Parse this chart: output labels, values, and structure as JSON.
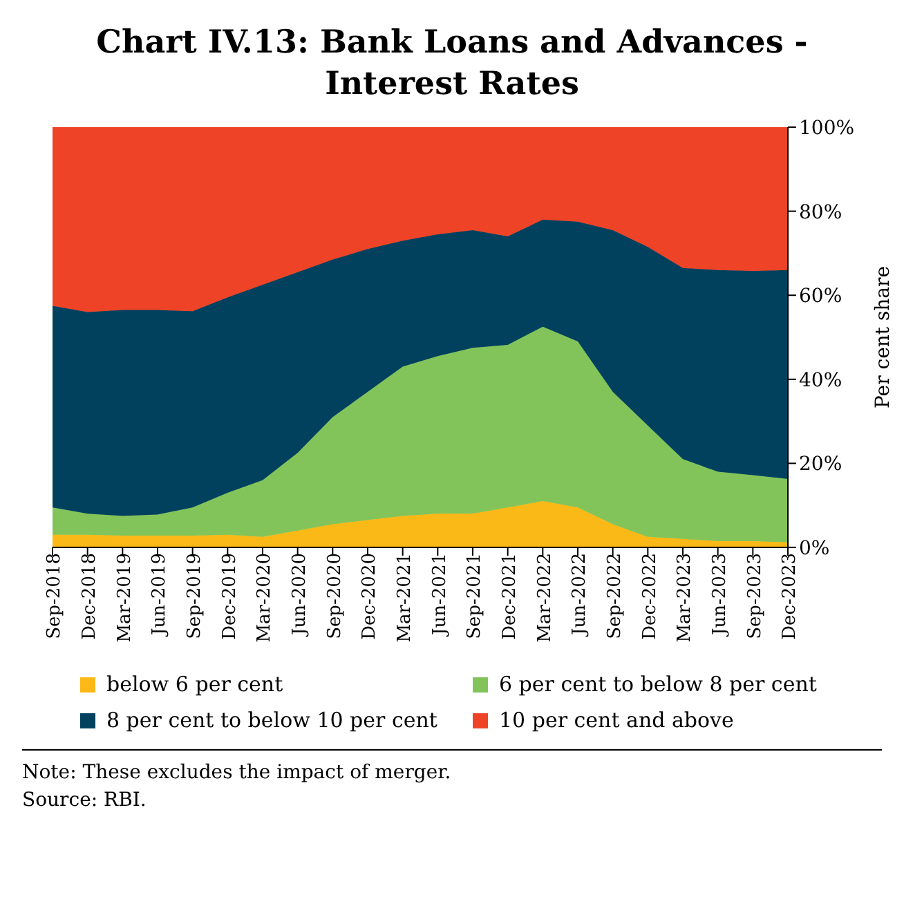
{
  "chart_data": {
    "type": "area",
    "title": "Chart IV.13: Bank Loans and Advances - Interest Rates",
    "ylabel": "Per cent share",
    "categories": [
      "Sep-2018",
      "Dec-2018",
      "Mar-2019",
      "Jun-2019",
      "Sep-2019",
      "Dec-2019",
      "Mar-2020",
      "Jun-2020",
      "Sep-2020",
      "Dec-2020",
      "Mar-2021",
      "Jun-2021",
      "Sep-2021",
      "Dec-2021",
      "Mar-2022",
      "Jun-2022",
      "Sep-2022",
      "Dec-2022",
      "Mar-2023",
      "Jun-2023",
      "Sep-2023",
      "Dec-2023"
    ],
    "stacked": true,
    "series": [
      {
        "name": "below 6 per cent",
        "color": "#fbb917",
        "values": [
          3,
          3,
          2.8,
          2.8,
          2.8,
          3,
          2.5,
          4,
          5.5,
          6.5,
          7.5,
          8,
          8,
          9.5,
          11,
          9.5,
          5.5,
          2.5,
          2,
          1.5,
          1.5,
          1.2
        ]
      },
      {
        "name": "6 per cent to below 8 per cent",
        "color": "#82c45a",
        "values": [
          6.5,
          5,
          4.7,
          5,
          6.7,
          10,
          13.5,
          18.5,
          25.5,
          30.5,
          35.5,
          37.5,
          39.5,
          38.7,
          41.5,
          39.5,
          31.5,
          26.5,
          19,
          16.5,
          15.7,
          15.1
        ]
      },
      {
        "name": "8 per cent to below 10 per cent",
        "color": "#02415e",
        "values": [
          48,
          48,
          49,
          48.7,
          46.7,
          46.5,
          46.5,
          43,
          37.5,
          34,
          30,
          29,
          28,
          25.8,
          25.5,
          28.5,
          38.5,
          42.5,
          45.5,
          48,
          48.6,
          49.7
        ]
      },
      {
        "name": "10 per cent and above",
        "color": "#ee4326",
        "values": [
          42.5,
          44,
          43.5,
          43.5,
          43.8,
          40.5,
          37.5,
          34.5,
          31.5,
          29,
          27,
          25.5,
          24.5,
          26,
          22,
          22.5,
          24.5,
          28.5,
          33.5,
          34,
          34.2,
          34
        ]
      }
    ],
    "ylim": [
      0,
      100
    ],
    "yticks": [
      {
        "value": 0,
        "label": "0%"
      },
      {
        "value": 20,
        "label": "20%"
      },
      {
        "value": 40,
        "label": "40%"
      },
      {
        "value": 60,
        "label": "60%"
      },
      {
        "value": 80,
        "label": "80%"
      },
      {
        "value": 100,
        "label": "100%"
      }
    ],
    "grid": false,
    "legend": "bottom",
    "annotations": [
      "Note: These excludes the impact of merger.",
      "Source: RBI."
    ]
  }
}
